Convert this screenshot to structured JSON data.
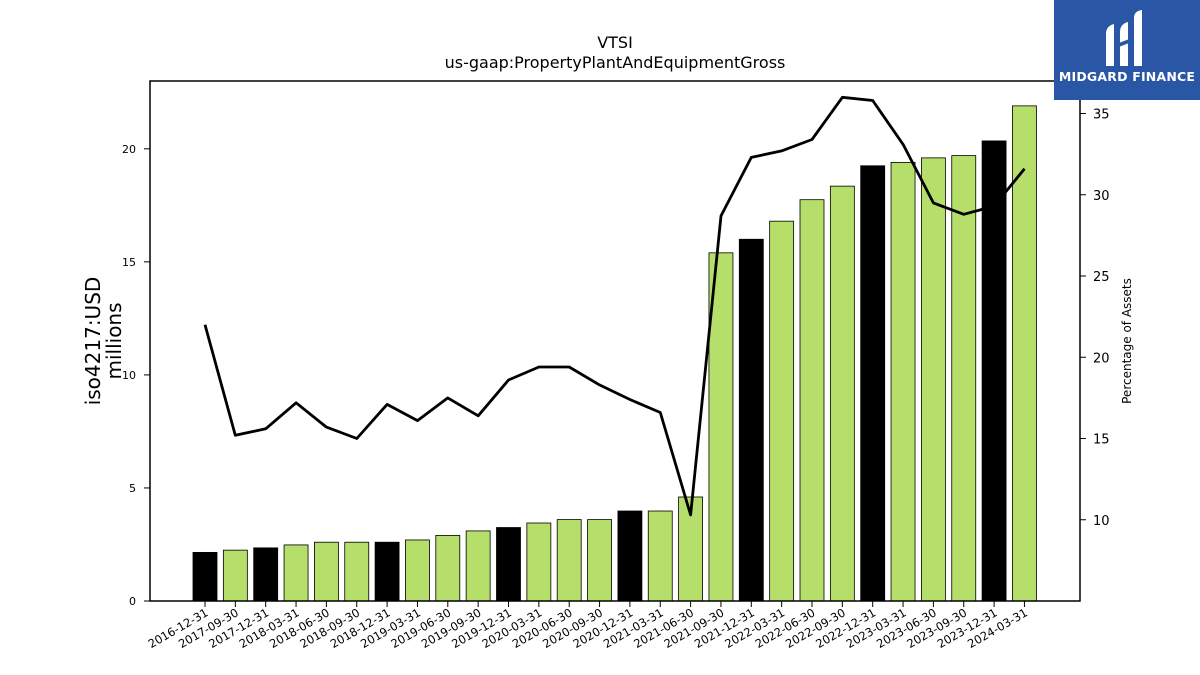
{
  "chart_data": {
    "type": "bar",
    "title": "VTSI",
    "subtitle": "us-gaap:PropertyPlantAndEquipmentGross",
    "ylabel": "iso4217:USD\nmillions",
    "y2label": "Percentage of Assets",
    "ylim": [
      0,
      23
    ],
    "y2lim": [
      5,
      37
    ],
    "yticks": [
      0,
      5,
      10,
      15,
      20
    ],
    "y2ticks": [
      10,
      15,
      20,
      25,
      30,
      35
    ],
    "grid": false,
    "categories": [
      "2016-12-31",
      "2017-09-30",
      "2017-12-31",
      "2018-03-31",
      "2018-06-30",
      "2018-09-30",
      "2018-12-31",
      "2019-03-31",
      "2019-06-30",
      "2019-09-30",
      "2019-12-31",
      "2020-03-31",
      "2020-06-30",
      "2020-09-30",
      "2020-12-31",
      "2021-03-31",
      "2021-06-30",
      "2021-09-30",
      "2021-12-31",
      "2022-03-31",
      "2022-06-30",
      "2022-09-30",
      "2022-12-31",
      "2023-03-31",
      "2023-06-30",
      "2023-09-30",
      "2023-12-31",
      "2024-03-31"
    ],
    "series": [
      {
        "type": "bar",
        "values": [
          2.15,
          2.25,
          2.35,
          2.48,
          2.6,
          2.6,
          2.6,
          2.7,
          2.9,
          3.1,
          3.25,
          3.45,
          3.6,
          3.6,
          3.98,
          3.98,
          4.6,
          15.4,
          16.0,
          16.8,
          17.75,
          18.35,
          19.25,
          19.4,
          19.6,
          19.7,
          20.35,
          21.9
        ],
        "colors": [
          "#000000",
          "#b5de6a",
          "#000000",
          "#b5de6a",
          "#b5de6a",
          "#b5de6a",
          "#000000",
          "#b5de6a",
          "#b5de6a",
          "#b5de6a",
          "#000000",
          "#b5de6a",
          "#b5de6a",
          "#b5de6a",
          "#000000",
          "#b5de6a",
          "#b5de6a",
          "#b5de6a",
          "#000000",
          "#b5de6a",
          "#b5de6a",
          "#b5de6a",
          "#000000",
          "#b5de6a",
          "#b5de6a",
          "#b5de6a",
          "#000000",
          "#b5de6a"
        ]
      },
      {
        "type": "line",
        "axis": "y2",
        "color": "#000000",
        "values": [
          22.0,
          15.2,
          15.6,
          17.2,
          15.7,
          15.0,
          17.1,
          16.1,
          17.5,
          16.4,
          18.6,
          19.4,
          19.4,
          18.3,
          17.4,
          16.6,
          10.3,
          28.7,
          32.3,
          32.7,
          33.4,
          36.0,
          35.8,
          33.1,
          29.5,
          28.8,
          29.3,
          31.6
        ]
      }
    ]
  },
  "logo": {
    "text": "MIDGARD FINANCE"
  }
}
